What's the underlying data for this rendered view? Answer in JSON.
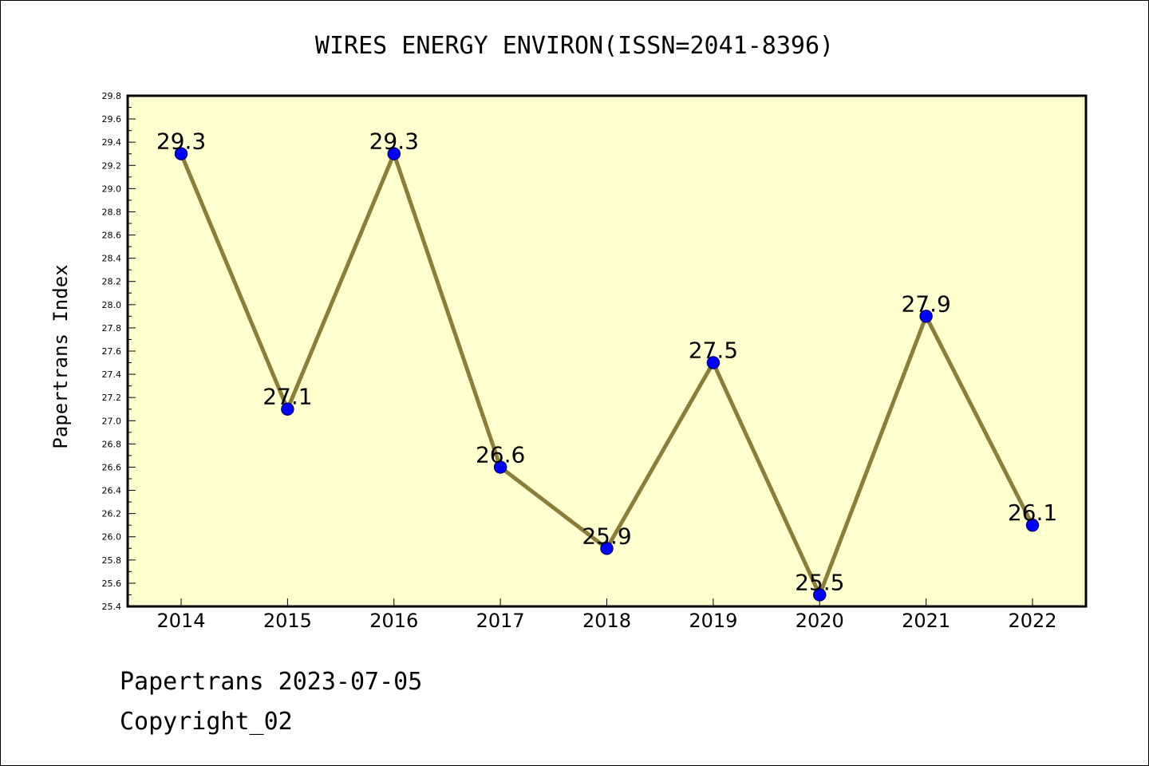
{
  "chart_data": {
    "type": "line",
    "title": "WIRES ENERGY ENVIRON(ISSN=2041-8396)",
    "xlabel": "",
    "ylabel": "Papertrans Index",
    "x": [
      "2014",
      "2015",
      "2016",
      "2017",
      "2018",
      "2019",
      "2020",
      "2021",
      "2022"
    ],
    "series": [
      {
        "values": [
          29.3,
          27.1,
          29.3,
          26.6,
          25.9,
          27.5,
          25.5,
          27.9,
          26.1
        ],
        "data_labels": [
          "29.3",
          "27.1",
          "29.3",
          "26.6",
          "25.9",
          "27.5",
          "25.5",
          "27.9",
          "26.1"
        ]
      }
    ],
    "ylim": [
      25.4,
      29.8
    ],
    "yticks": [
      "25.4",
      "25.6",
      "25.8",
      "26.0",
      "26.2",
      "26.4",
      "26.6",
      "26.8",
      "27.0",
      "27.2",
      "27.4",
      "27.6",
      "27.8",
      "28.0",
      "28.2",
      "28.4",
      "28.6",
      "28.8",
      "29.0",
      "29.2",
      "29.4",
      "29.6",
      "29.8"
    ],
    "grid": false,
    "colors": {
      "plot_background": "#ffffd0",
      "line": "#8b7d3a",
      "marker": "#0000ff",
      "marker_edge": "#000080"
    }
  },
  "footer": {
    "line1": "Papertrans 2023-07-05",
    "line2": "Copyright_02"
  }
}
